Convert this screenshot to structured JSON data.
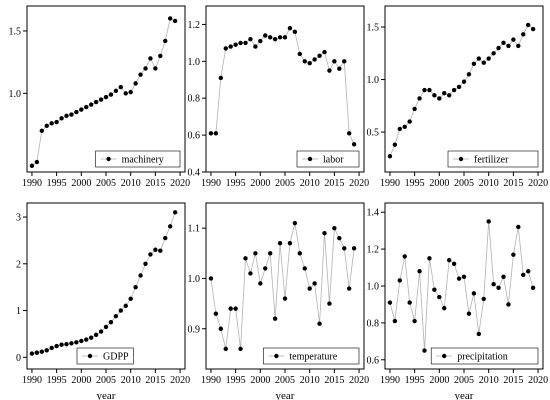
{
  "chart_data": [
    {
      "type": "line",
      "legend": "machinery",
      "legend_position": "bottom-right",
      "grid": false,
      "xlabel": "",
      "xlim": [
        1989,
        2021
      ],
      "ylim": [
        0.37,
        1.7
      ],
      "xticks": [
        1990,
        1995,
        2000,
        2005,
        2010,
        2015,
        2020
      ],
      "yticks": [
        {
          "v": 1.0,
          "label": "1.0"
        },
        {
          "v": 1.5,
          "label": "1.5"
        }
      ],
      "x": [
        1990,
        1991,
        1992,
        1993,
        1994,
        1995,
        1996,
        1997,
        1998,
        1999,
        2000,
        2001,
        2002,
        2003,
        2004,
        2005,
        2006,
        2007,
        2008,
        2009,
        2010,
        2011,
        2012,
        2013,
        2014,
        2015,
        2016,
        2017,
        2018,
        2019
      ],
      "y": [
        0.42,
        0.45,
        0.7,
        0.74,
        0.76,
        0.77,
        0.8,
        0.82,
        0.83,
        0.85,
        0.87,
        0.89,
        0.91,
        0.93,
        0.95,
        0.97,
        0.99,
        1.02,
        1.05,
        1.0,
        1.01,
        1.08,
        1.15,
        1.2,
        1.28,
        1.2,
        1.3,
        1.42,
        1.6,
        1.58
      ]
    },
    {
      "type": "line",
      "legend": "labor",
      "legend_position": "bottom-right",
      "grid": false,
      "xlabel": "",
      "xlim": [
        1989,
        2021
      ],
      "ylim": [
        0.4,
        1.3
      ],
      "xticks": [
        1990,
        1995,
        2000,
        2005,
        2010,
        2015,
        2020
      ],
      "yticks": [
        {
          "v": 0.4,
          "label": "0.4"
        },
        {
          "v": 0.6,
          "label": "0.6"
        },
        {
          "v": 0.8,
          "label": "0.8"
        },
        {
          "v": 1.0,
          "label": "1.0"
        },
        {
          "v": 1.2,
          "label": "1.2"
        }
      ],
      "x": [
        1990,
        1991,
        1992,
        1993,
        1994,
        1995,
        1996,
        1997,
        1998,
        1999,
        2000,
        2001,
        2002,
        2003,
        2004,
        2005,
        2006,
        2007,
        2008,
        2009,
        2010,
        2011,
        2012,
        2013,
        2014,
        2015,
        2016,
        2017,
        2018,
        2019
      ],
      "y": [
        0.61,
        0.61,
        0.91,
        1.07,
        1.08,
        1.09,
        1.1,
        1.1,
        1.12,
        1.08,
        1.11,
        1.14,
        1.13,
        1.12,
        1.13,
        1.13,
        1.18,
        1.16,
        1.04,
        1.0,
        0.99,
        1.01,
        1.03,
        1.05,
        0.95,
        1.0,
        0.96,
        1.0,
        0.61,
        0.55
      ]
    },
    {
      "type": "line",
      "legend": "fertilizer",
      "legend_position": "bottom-right",
      "grid": false,
      "xlabel": "",
      "xlim": [
        1989,
        2021
      ],
      "ylim": [
        0.12,
        1.7
      ],
      "xticks": [
        1990,
        1995,
        2000,
        2005,
        2010,
        2015,
        2020
      ],
      "yticks": [
        {
          "v": 0.5,
          "label": "0.5"
        },
        {
          "v": 1.0,
          "label": "1.0"
        },
        {
          "v": 1.5,
          "label": "1.5"
        }
      ],
      "x": [
        1990,
        1991,
        1992,
        1993,
        1994,
        1995,
        1996,
        1997,
        1998,
        1999,
        2000,
        2001,
        2002,
        2003,
        2004,
        2005,
        2006,
        2007,
        2008,
        2009,
        2010,
        2011,
        2012,
        2013,
        2014,
        2015,
        2016,
        2017,
        2018,
        2019
      ],
      "y": [
        0.27,
        0.38,
        0.53,
        0.55,
        0.6,
        0.72,
        0.82,
        0.9,
        0.9,
        0.85,
        0.82,
        0.87,
        0.85,
        0.9,
        0.93,
        0.98,
        1.05,
        1.15,
        1.2,
        1.16,
        1.2,
        1.25,
        1.3,
        1.35,
        1.32,
        1.38,
        1.32,
        1.43,
        1.52,
        1.48
      ]
    },
    {
      "type": "line",
      "legend": "GDPP",
      "legend_position": "bottom-left",
      "grid": false,
      "xlabel": "year",
      "xlim": [
        1989,
        2021
      ],
      "ylim": [
        -0.25,
        3.3
      ],
      "xticks": [
        1990,
        1995,
        2000,
        2005,
        2010,
        2015,
        2020
      ],
      "yticks": [
        {
          "v": 0,
          "label": "0"
        },
        {
          "v": 1,
          "label": "1"
        },
        {
          "v": 2,
          "label": "2"
        },
        {
          "v": 3,
          "label": "3"
        }
      ],
      "x": [
        1990,
        1991,
        1992,
        1993,
        1994,
        1995,
        1996,
        1997,
        1998,
        1999,
        2000,
        2001,
        2002,
        2003,
        2004,
        2005,
        2006,
        2007,
        2008,
        2009,
        2010,
        2011,
        2012,
        2013,
        2014,
        2015,
        2016,
        2017,
        2018,
        2019
      ],
      "y": [
        0.08,
        0.1,
        0.12,
        0.15,
        0.2,
        0.24,
        0.27,
        0.28,
        0.3,
        0.32,
        0.35,
        0.38,
        0.42,
        0.48,
        0.55,
        0.65,
        0.75,
        0.88,
        1.0,
        1.1,
        1.25,
        1.5,
        1.75,
        2.0,
        2.2,
        2.3,
        2.28,
        2.55,
        2.8,
        3.1
      ]
    },
    {
      "type": "line",
      "legend": "temperature",
      "legend_position": "bottom-right",
      "grid": false,
      "xlabel": "year",
      "xlim": [
        1989,
        2021
      ],
      "ylim": [
        0.82,
        1.15
      ],
      "xticks": [
        1990,
        1995,
        2000,
        2005,
        2010,
        2015,
        2020
      ],
      "yticks": [
        {
          "v": 0.9,
          "label": "0.9"
        },
        {
          "v": 1.0,
          "label": "1.0"
        },
        {
          "v": 1.1,
          "label": "1.1"
        }
      ],
      "x": [
        1990,
        1991,
        1992,
        1993,
        1994,
        1995,
        1996,
        1997,
        1998,
        1999,
        2000,
        2001,
        2002,
        2003,
        2004,
        2005,
        2006,
        2007,
        2008,
        2009,
        2010,
        2011,
        2012,
        2013,
        2014,
        2015,
        2016,
        2017,
        2018,
        2019
      ],
      "y": [
        1.0,
        0.93,
        0.9,
        0.86,
        0.94,
        0.94,
        0.86,
        1.04,
        1.01,
        1.05,
        0.99,
        1.02,
        1.05,
        0.92,
        1.07,
        0.96,
        1.07,
        1.11,
        1.05,
        1.02,
        0.98,
        0.99,
        0.91,
        1.09,
        0.95,
        1.1,
        1.08,
        1.06,
        0.98,
        1.06
      ]
    },
    {
      "type": "line",
      "legend": "precipitation",
      "legend_position": "bottom-right",
      "grid": false,
      "xlabel": "year",
      "xlim": [
        1989,
        2021
      ],
      "ylim": [
        0.55,
        1.45
      ],
      "xticks": [
        1990,
        1995,
        2000,
        2005,
        2010,
        2015,
        2020
      ],
      "yticks": [
        {
          "v": 0.6,
          "label": "0.6"
        },
        {
          "v": 0.8,
          "label": "0.8"
        },
        {
          "v": 1.0,
          "label": "1.0"
        },
        {
          "v": 1.2,
          "label": "1.2"
        },
        {
          "v": 1.4,
          "label": "1.4"
        }
      ],
      "x": [
        1990,
        1991,
        1992,
        1993,
        1994,
        1995,
        1996,
        1997,
        1998,
        1999,
        2000,
        2001,
        2002,
        2003,
        2004,
        2005,
        2006,
        2007,
        2008,
        2009,
        2010,
        2011,
        2012,
        2013,
        2014,
        2015,
        2016,
        2017,
        2018,
        2019
      ],
      "y": [
        0.91,
        0.81,
        1.03,
        1.16,
        0.91,
        0.81,
        1.08,
        0.65,
        1.15,
        0.98,
        0.94,
        0.88,
        1.14,
        1.12,
        1.04,
        1.05,
        0.85,
        0.96,
        0.74,
        0.93,
        1.35,
        1.01,
        0.99,
        1.05,
        0.9,
        1.17,
        1.32,
        1.06,
        1.08,
        0.99
      ]
    }
  ]
}
